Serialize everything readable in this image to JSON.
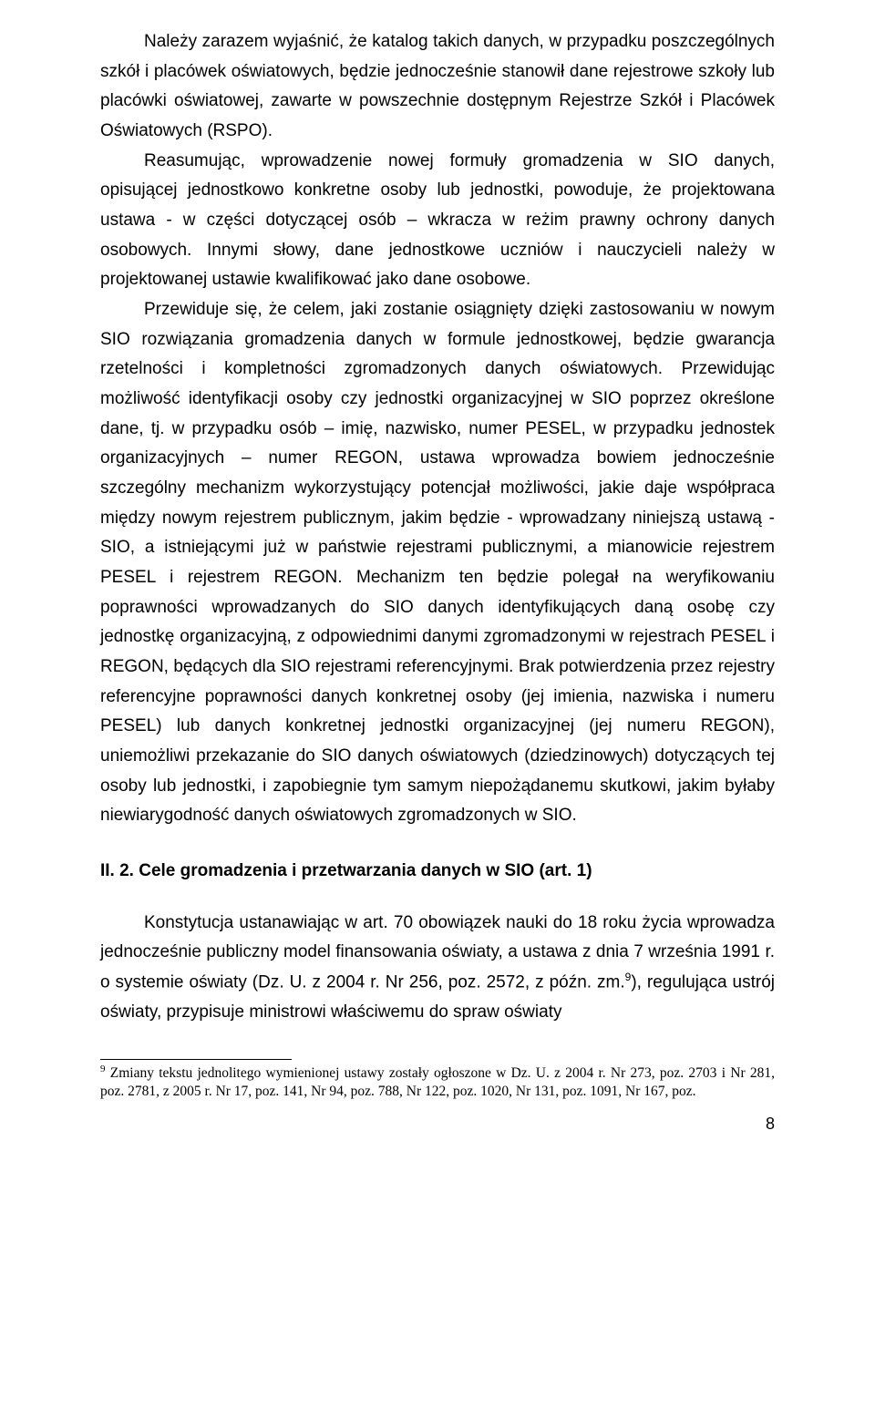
{
  "para1": "Należy zarazem wyjaśnić, że katalog takich danych, w przypadku poszczególnych szkół i placówek oświatowych, będzie jednocześnie stanowił dane rejestrowe szkoły lub placówki oświatowej, zawarte w powszechnie dostępnym Rejestrze Szkół i Placówek Oświatowych (RSPO).",
  "para2": "Reasumując, wprowadzenie nowej formuły gromadzenia w SIO danych, opisującej jednostkowo konkretne osoby lub jednostki, powoduje, że projektowana ustawa - w części dotyczącej osób – wkracza w reżim prawny ochrony danych osobowych. Innymi słowy, dane jednostkowe uczniów i nauczycieli należy w projektowanej ustawie kwalifikować jako dane osobowe.",
  "para3": "Przewiduje się, że celem, jaki zostanie osiągnięty dzięki zastosowaniu w nowym SIO rozwiązania gromadzenia danych w formule jednostkowej, będzie gwarancja rzetelności i kompletności zgromadzonych danych oświatowych. Przewidując możliwość identyfikacji osoby czy jednostki organizacyjnej w SIO poprzez określone dane, tj. w przypadku osób – imię, nazwisko, numer PESEL, w przypadku jednostek organizacyjnych – numer REGON, ustawa wprowadza bowiem jednocześnie szczególny mechanizm wykorzystujący potencjał możliwości, jakie daje współpraca między nowym rejestrem publicznym, jakim będzie - wprowadzany niniejszą ustawą - SIO, a istniejącymi już w państwie rejestrami publicznymi, a mianowicie rejestrem PESEL i rejestrem REGON. Mechanizm ten będzie polegał   na weryfikowaniu poprawności wprowadzanych do SIO danych identyfikujących daną osobę czy jednostkę organizacyjną, z odpowiednimi danymi zgromadzonymi w rejestrach PESEL i REGON, będących dla SIO rejestrami referencyjnymi. Brak potwierdzenia przez rejestry referencyjne poprawności danych konkretnej osoby (jej imienia, nazwiska i numeru PESEL) lub danych konkretnej jednostki organizacyjnej (jej numeru REGON), uniemożliwi przekazanie do SIO danych oświatowych (dziedzinowych) dotyczących tej osoby lub jednostki, i zapobiegnie tym samym niepożądanemu skutkowi, jakim byłaby niewiarygodność danych oświatowych zgromadzonych w SIO.",
  "heading": "II. 2. Cele gromadzenia i przetwarzania danych w SIO (art. 1)",
  "para4_a": "Konstytucja ustanawiając w art. 70 obowiązek nauki do 18 roku życia wprowadza jednocześnie publiczny model finansowania oświaty, a ustawa z dnia 7 września 1991 r. o systemie oświaty (Dz. U. z 2004 r. Nr 256, poz. 2572, z późn. zm.",
  "fn_mark": "9",
  "para4_b": "), regulująca ustrój oświaty, przypisuje ministrowi właściwemu do spraw oświaty",
  "footnote_mark": "9",
  "footnote_text": " Zmiany tekstu jednolitego wymienionej ustawy zostały ogłoszone w Dz. U. z 2004 r. Nr 273, poz. 2703 i Nr 281, poz. 2781, z 2005 r. Nr 17, poz. 141, Nr 94, poz. 788, Nr 122, poz. 1020, Nr 131, poz. 1091, Nr 167, poz.",
  "page_number": "8"
}
